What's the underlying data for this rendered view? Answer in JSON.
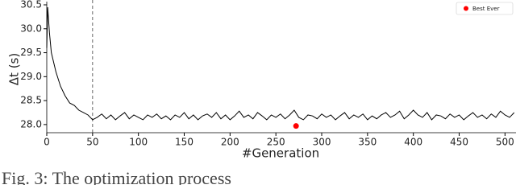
{
  "chart_data": {
    "type": "line",
    "x_label": "#Generation",
    "y_label": "Δt (s)",
    "caption": "Fig. 3: The optimization process",
    "x": [
      0,
      1,
      3,
      5,
      10,
      15,
      20,
      25,
      30,
      35,
      40,
      45,
      50,
      55,
      60,
      65,
      70,
      75,
      80,
      85,
      90,
      95,
      100,
      105,
      110,
      115,
      120,
      125,
      130,
      135,
      140,
      145,
      150,
      155,
      160,
      165,
      170,
      175,
      180,
      185,
      190,
      195,
      200,
      205,
      210,
      215,
      220,
      225,
      230,
      235,
      240,
      245,
      250,
      255,
      260,
      265,
      270,
      275,
      280,
      285,
      290,
      295,
      300,
      305,
      310,
      315,
      320,
      325,
      330,
      335,
      340,
      345,
      350,
      355,
      360,
      365,
      370,
      375,
      380,
      385,
      390,
      395,
      400,
      405,
      410,
      415,
      420,
      425,
      430,
      435,
      440,
      445,
      450,
      455,
      460,
      465,
      470,
      475,
      480,
      485,
      490,
      495,
      500,
      505,
      510
    ],
    "series": [
      {
        "name": "Δt",
        "color": "#000000",
        "values": [
          29.6,
          30.45,
          29.9,
          29.5,
          29.1,
          28.8,
          28.6,
          28.45,
          28.4,
          28.3,
          28.25,
          28.2,
          28.1,
          28.15,
          28.22,
          28.12,
          28.2,
          28.1,
          28.18,
          28.25,
          28.12,
          28.2,
          28.15,
          28.1,
          28.2,
          28.15,
          28.22,
          28.12,
          28.18,
          28.1,
          28.2,
          28.15,
          28.25,
          28.12,
          28.2,
          28.1,
          28.18,
          28.22,
          28.15,
          28.25,
          28.12,
          28.2,
          28.1,
          28.18,
          28.28,
          28.15,
          28.2,
          28.12,
          28.25,
          28.18,
          28.1,
          28.2,
          28.15,
          28.22,
          28.12,
          28.2,
          28.3,
          28.15,
          28.1,
          28.2,
          28.18,
          28.12,
          28.22,
          28.15,
          28.2,
          28.1,
          28.18,
          28.25,
          28.12,
          28.2,
          28.15,
          28.22,
          28.1,
          28.18,
          28.12,
          28.2,
          28.25,
          28.15,
          28.2,
          28.28,
          28.12,
          28.2,
          28.3,
          28.2,
          28.15,
          28.25,
          28.1,
          28.2,
          28.18,
          28.12,
          28.22,
          28.15,
          28.2,
          28.1,
          28.18,
          28.25,
          28.15,
          28.2,
          28.12,
          28.22,
          28.15,
          28.28,
          28.2,
          28.15,
          28.25
        ]
      }
    ],
    "best": {
      "name": "Best Ever",
      "color": "#ff0000",
      "x": [
        272
      ],
      "values": [
        27.97
      ]
    },
    "vline": 50,
    "xlim": [
      0,
      512
    ],
    "ylim": [
      27.83,
      30.5
    ],
    "xticks": [
      0,
      50,
      100,
      150,
      200,
      250,
      300,
      350,
      400,
      450,
      500
    ],
    "yticks": [
      {
        "value": 28,
        "label": "28.0"
      },
      28.5,
      {
        "value": 29,
        "label": "29.0"
      },
      29.5,
      {
        "value": 30,
        "label": "30.0"
      },
      30.5
    ],
    "legend": "upper right"
  }
}
